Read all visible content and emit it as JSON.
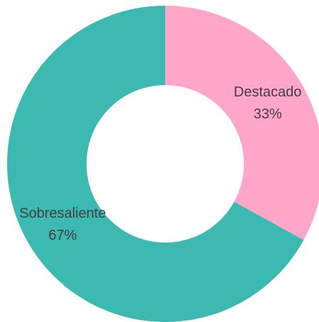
{
  "chart_data": {
    "type": "donut",
    "categories": [
      "Destacado",
      "Sobresaliente"
    ],
    "values": [
      33,
      67
    ],
    "value_labels": [
      "33%",
      "67%"
    ],
    "colors": [
      "#ffa6c9",
      "#3cb9b1"
    ]
  }
}
